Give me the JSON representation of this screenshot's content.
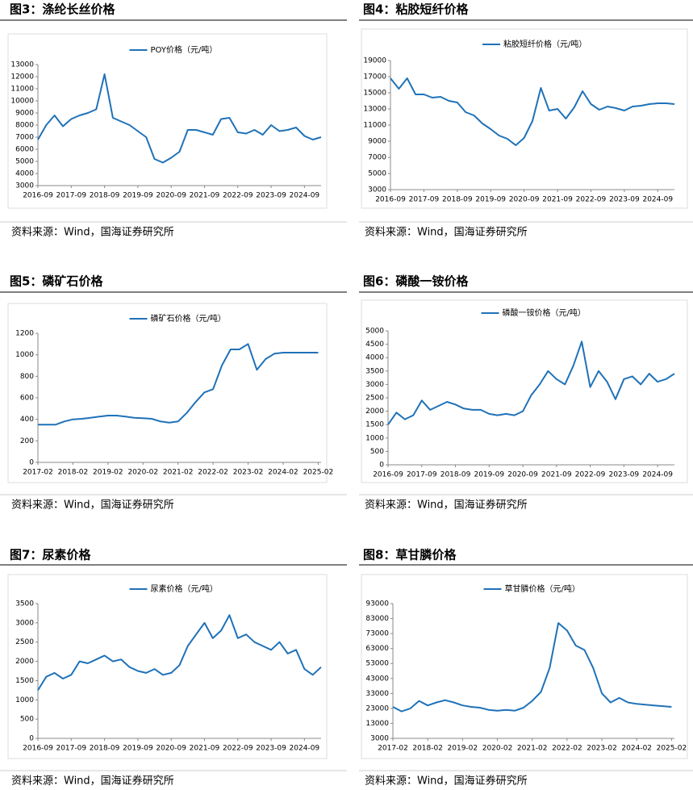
{
  "chart_data": [
    {
      "type": "line",
      "title": "图3：涤纶长丝价格",
      "source": "资料来源：Wind，国海证券研究所",
      "x": [
        "2016-09",
        "2016-12",
        "2017-03",
        "2017-06",
        "2017-09",
        "2017-12",
        "2018-03",
        "2018-06",
        "2018-09",
        "2018-12",
        "2019-03",
        "2019-06",
        "2019-09",
        "2019-12",
        "2020-03",
        "2020-06",
        "2020-09",
        "2020-12",
        "2021-03",
        "2021-06",
        "2021-09",
        "2021-12",
        "2022-03",
        "2022-06",
        "2022-09",
        "2022-12",
        "2023-03",
        "2023-06",
        "2023-09",
        "2023-12",
        "2024-03",
        "2024-06",
        "2024-09",
        "2024-12",
        "2025-03"
      ],
      "series": [
        {
          "name": "POY价格（元/吨）",
          "color": "#1f72b8",
          "values": [
            6800,
            8000,
            8800,
            7900,
            8500,
            8800,
            9000,
            9300,
            12200,
            8600,
            8300,
            8000,
            7500,
            7000,
            5200,
            4900,
            5300,
            5800,
            7600,
            7600,
            7400,
            7200,
            8500,
            8600,
            7400,
            7300,
            7600,
            7200,
            8000,
            7500,
            7600,
            7800,
            7100,
            6800,
            7000
          ]
        }
      ],
      "xlim": [
        "2016-09",
        "2025-03"
      ],
      "xticks": [
        "2016-09",
        "2017-09",
        "2018-09",
        "2019-09",
        "2020-09",
        "2021-09",
        "2022-09",
        "2023-09",
        "2024-09"
      ],
      "ylim": [
        3000,
        13000
      ],
      "yticks": [
        3000,
        4000,
        5000,
        6000,
        7000,
        8000,
        9000,
        10000,
        11000,
        12000,
        13000
      ]
    },
    {
      "type": "line",
      "title": "图4：粘胶短纤价格",
      "source": "资料来源：Wind，国海证券研究所",
      "x": [
        "2016-09",
        "2016-12",
        "2017-03",
        "2017-06",
        "2017-09",
        "2017-12",
        "2018-03",
        "2018-06",
        "2018-09",
        "2018-12",
        "2019-03",
        "2019-06",
        "2019-09",
        "2019-12",
        "2020-03",
        "2020-06",
        "2020-09",
        "2020-12",
        "2021-03",
        "2021-06",
        "2021-09",
        "2021-12",
        "2022-03",
        "2022-06",
        "2022-09",
        "2022-12",
        "2023-03",
        "2023-06",
        "2023-09",
        "2023-12",
        "2024-03",
        "2024-06",
        "2024-09",
        "2024-12",
        "2025-03"
      ],
      "series": [
        {
          "name": "粘胶短纤价格（元/吨）",
          "color": "#1f72b8",
          "values": [
            16800,
            15500,
            16800,
            14800,
            14800,
            14400,
            14500,
            14000,
            13800,
            12600,
            12200,
            11200,
            10500,
            9700,
            9300,
            8500,
            9400,
            11500,
            15600,
            12800,
            13000,
            11800,
            13200,
            15200,
            13600,
            12900,
            13300,
            13100,
            12800,
            13300,
            13400,
            13600,
            13700,
            13700,
            13600
          ]
        }
      ],
      "xlim": [
        "2016-09",
        "2025-03"
      ],
      "xticks": [
        "2016-09",
        "2017-09",
        "2018-09",
        "2019-09",
        "2020-09",
        "2021-09",
        "2022-09",
        "2023-09",
        "2024-09"
      ],
      "ylim": [
        3000,
        19000
      ],
      "yticks": [
        3000,
        5000,
        7000,
        9000,
        11000,
        13000,
        15000,
        17000,
        19000
      ]
    },
    {
      "type": "line",
      "title": "图5：磷矿石价格",
      "source": "资料来源：Wind，国海证券研究所",
      "x": [
        "2017-02",
        "2017-05",
        "2017-08",
        "2017-11",
        "2018-02",
        "2018-05",
        "2018-08",
        "2018-11",
        "2019-02",
        "2019-05",
        "2019-08",
        "2019-11",
        "2020-02",
        "2020-05",
        "2020-08",
        "2020-11",
        "2021-02",
        "2021-05",
        "2021-08",
        "2021-11",
        "2022-02",
        "2022-05",
        "2022-08",
        "2022-11",
        "2023-02",
        "2023-05",
        "2023-08",
        "2023-11",
        "2024-02",
        "2024-05",
        "2024-08",
        "2024-11",
        "2025-02"
      ],
      "series": [
        {
          "name": "磷矿石价格（元/吨）",
          "color": "#1f72b8",
          "values": [
            350,
            350,
            350,
            380,
            400,
            405,
            415,
            425,
            435,
            435,
            425,
            415,
            410,
            405,
            380,
            370,
            380,
            460,
            560,
            650,
            680,
            900,
            1050,
            1050,
            1100,
            860,
            960,
            1010,
            1020,
            1020,
            1020,
            1020,
            1020
          ]
        }
      ],
      "xlim": [
        "2017-02",
        "2025-03"
      ],
      "xticks": [
        "2017-02",
        "2018-02",
        "2019-02",
        "2020-02",
        "2021-02",
        "2022-02",
        "2023-02",
        "2024-02",
        "2025-02"
      ],
      "ylim": [
        0,
        1200
      ],
      "yticks": [
        0,
        200,
        400,
        600,
        800,
        1000,
        1200
      ]
    },
    {
      "type": "line",
      "title": "图6：磷酸一铵价格",
      "source": "资料来源：Wind，国海证券研究所",
      "x": [
        "2016-09",
        "2016-12",
        "2017-03",
        "2017-06",
        "2017-09",
        "2017-12",
        "2018-03",
        "2018-06",
        "2018-09",
        "2018-12",
        "2019-03",
        "2019-06",
        "2019-09",
        "2019-12",
        "2020-03",
        "2020-06",
        "2020-09",
        "2020-12",
        "2021-03",
        "2021-06",
        "2021-09",
        "2021-12",
        "2022-03",
        "2022-06",
        "2022-09",
        "2022-12",
        "2023-03",
        "2023-06",
        "2023-09",
        "2023-12",
        "2024-03",
        "2024-06",
        "2024-09",
        "2024-12",
        "2025-03"
      ],
      "series": [
        {
          "name": "磷酸一铵价格（元/吨）",
          "color": "#1f72b8",
          "values": [
            1500,
            1950,
            1700,
            1850,
            2400,
            2050,
            2200,
            2350,
            2250,
            2100,
            2050,
            2050,
            1900,
            1850,
            1900,
            1850,
            2000,
            2600,
            3000,
            3500,
            3200,
            3000,
            3700,
            4600,
            2900,
            3500,
            3100,
            2450,
            3200,
            3300,
            3000,
            3400,
            3100,
            3200,
            3400
          ]
        }
      ],
      "xlim": [
        "2016-09",
        "2025-03"
      ],
      "xticks": [
        "2016-09",
        "2017-09",
        "2018-09",
        "2019-09",
        "2020-09",
        "2021-09",
        "2022-09",
        "2023-09",
        "2024-09"
      ],
      "ylim": [
        0,
        5000
      ],
      "yticks": [
        0,
        500,
        1000,
        1500,
        2000,
        2500,
        3000,
        3500,
        4000,
        4500,
        5000
      ]
    },
    {
      "type": "line",
      "title": "图7：尿素价格",
      "source": "资料来源：Wind，国海证券研究所",
      "x": [
        "2016-09",
        "2016-12",
        "2017-03",
        "2017-06",
        "2017-09",
        "2017-12",
        "2018-03",
        "2018-06",
        "2018-09",
        "2018-12",
        "2019-03",
        "2019-06",
        "2019-09",
        "2019-12",
        "2020-03",
        "2020-06",
        "2020-09",
        "2020-12",
        "2021-03",
        "2021-06",
        "2021-09",
        "2021-12",
        "2022-03",
        "2022-06",
        "2022-09",
        "2022-12",
        "2023-03",
        "2023-06",
        "2023-09",
        "2023-12",
        "2024-03",
        "2024-06",
        "2024-09",
        "2024-12",
        "2025-03"
      ],
      "series": [
        {
          "name": "尿素价格（元/吨）",
          "color": "#1f72b8",
          "values": [
            1250,
            1600,
            1700,
            1550,
            1650,
            2000,
            1950,
            2050,
            2150,
            2000,
            2050,
            1850,
            1750,
            1700,
            1800,
            1650,
            1700,
            1900,
            2400,
            2700,
            3000,
            2600,
            2800,
            3200,
            2600,
            2700,
            2500,
            2400,
            2300,
            2500,
            2200,
            2300,
            1800,
            1650,
            1850
          ]
        }
      ],
      "xlim": [
        "2016-09",
        "2025-03"
      ],
      "xticks": [
        "2016-09",
        "2017-09",
        "2018-09",
        "2019-09",
        "2020-09",
        "2021-09",
        "2022-09",
        "2023-09",
        "2024-09"
      ],
      "ylim": [
        0,
        3500
      ],
      "yticks": [
        0,
        500,
        1000,
        1500,
        2000,
        2500,
        3000,
        3500
      ]
    },
    {
      "type": "line",
      "title": "图8：草甘膦价格",
      "source": "资料来源：Wind，国海证券研究所",
      "x": [
        "2017-02",
        "2017-05",
        "2017-08",
        "2017-11",
        "2018-02",
        "2018-05",
        "2018-08",
        "2018-11",
        "2019-02",
        "2019-05",
        "2019-08",
        "2019-11",
        "2020-02",
        "2020-05",
        "2020-08",
        "2020-11",
        "2021-02",
        "2021-05",
        "2021-08",
        "2021-11",
        "2022-02",
        "2022-05",
        "2022-08",
        "2022-11",
        "2023-02",
        "2023-05",
        "2023-08",
        "2023-11",
        "2024-02",
        "2024-05",
        "2024-08",
        "2024-11",
        "2025-02"
      ],
      "series": [
        {
          "name": "草甘膦价格（元/吨）",
          "color": "#1f72b8",
          "values": [
            24000,
            21000,
            23000,
            28000,
            25000,
            27000,
            28500,
            27000,
            25000,
            24000,
            23500,
            22000,
            21500,
            22000,
            21500,
            23500,
            28000,
            34000,
            50000,
            80000,
            75000,
            65000,
            62000,
            50000,
            33000,
            27000,
            30000,
            27000,
            26000,
            25500,
            25000,
            24500,
            24000
          ]
        }
      ],
      "xlim": [
        "2017-02",
        "2025-03"
      ],
      "xticks": [
        "2017-02",
        "2018-02",
        "2019-02",
        "2020-02",
        "2021-02",
        "2022-02",
        "2023-02",
        "2024-02",
        "2025-02"
      ],
      "ylim": [
        3000,
        93000
      ],
      "yticks": [
        3000,
        13000,
        23000,
        33000,
        43000,
        53000,
        63000,
        73000,
        83000,
        93000
      ]
    }
  ]
}
